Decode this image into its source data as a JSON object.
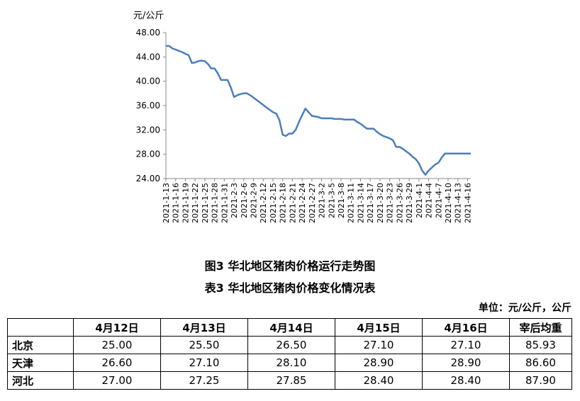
{
  "chart_data": {
    "type": "line",
    "y_unit_label": "元/公斤",
    "ylim": [
      24,
      48
    ],
    "y_ticks": [
      "48.00",
      "44.00",
      "40.00",
      "36.00",
      "32.00",
      "28.00",
      "24.00"
    ],
    "x_tick_labels": [
      "2021-1-13",
      "2021-1-16",
      "2021-1-19",
      "2021-1-22",
      "2021-1-25",
      "2021-1-28",
      "2021-1-31",
      "2021-2-3",
      "2021-2-6",
      "2021-2-9",
      "2021-2-12",
      "2021-2-15",
      "2021-2-18",
      "2021-2-21",
      "2021-2-24",
      "2021-2-27",
      "2021-3-2",
      "2021-3-5",
      "2021-3-8",
      "2021-3-11",
      "2021-3-14",
      "2021-3-17",
      "2021-3-20",
      "2021-3-23",
      "2021-3-26",
      "2021-3-29",
      "2021-4-1",
      "2021-4-4",
      "2021-4-7",
      "2021-4-10",
      "2021-4-13",
      "2021-4-16"
    ],
    "x_start": "2021-1-13",
    "x_end": "2021-4-17",
    "color": "#4a7ebb",
    "grid": false,
    "series": [
      {
        "x": [
          "2021-1-13",
          "2021-1-14",
          "2021-1-15",
          "2021-1-16",
          "2021-1-17",
          "2021-1-18",
          "2021-1-19",
          "2021-1-20",
          "2021-1-21",
          "2021-1-22",
          "2021-1-23",
          "2021-1-24",
          "2021-1-25",
          "2021-1-26",
          "2021-1-27",
          "2021-1-28",
          "2021-1-29",
          "2021-1-30",
          "2021-1-31",
          "2021-2-1",
          "2021-2-2",
          "2021-2-3",
          "2021-2-4",
          "2021-2-5",
          "2021-2-6",
          "2021-2-7",
          "2021-2-8",
          "2021-2-9",
          "2021-2-10",
          "2021-2-11",
          "2021-2-12",
          "2021-2-13",
          "2021-2-14",
          "2021-2-15",
          "2021-2-16",
          "2021-2-17",
          "2021-2-18",
          "2021-2-19",
          "2021-2-20",
          "2021-2-21",
          "2021-2-22",
          "2021-2-23",
          "2021-2-24",
          "2021-2-25",
          "2021-2-26",
          "2021-2-27",
          "2021-2-28",
          "2021-3-1",
          "2021-3-2",
          "2021-3-3",
          "2021-3-4",
          "2021-3-5",
          "2021-3-6",
          "2021-3-7",
          "2021-3-8",
          "2021-3-9",
          "2021-3-10",
          "2021-3-11",
          "2021-3-12",
          "2021-3-13",
          "2021-3-14",
          "2021-3-15",
          "2021-3-16",
          "2021-3-17",
          "2021-3-18",
          "2021-3-19",
          "2021-3-20",
          "2021-3-21",
          "2021-3-22",
          "2021-3-23",
          "2021-3-24",
          "2021-3-25",
          "2021-3-26",
          "2021-3-27",
          "2021-3-28",
          "2021-3-29",
          "2021-3-30",
          "2021-3-31",
          "2021-4-1",
          "2021-4-2",
          "2021-4-3",
          "2021-4-4",
          "2021-4-5",
          "2021-4-6",
          "2021-4-7",
          "2021-4-8",
          "2021-4-9",
          "2021-4-10",
          "2021-4-11",
          "2021-4-12",
          "2021-4-13",
          "2021-4-14",
          "2021-4-15",
          "2021-4-16",
          "2021-4-17"
        ],
        "values": [
          45.8,
          45.8,
          45.4,
          45.2,
          45.0,
          44.8,
          44.5,
          44.3,
          43.0,
          43.1,
          43.3,
          43.4,
          43.3,
          42.8,
          42.1,
          42.1,
          41.3,
          40.2,
          40.2,
          40.2,
          39.0,
          37.4,
          37.7,
          37.9,
          38.0,
          38.0,
          37.7,
          37.3,
          36.9,
          36.5,
          36.1,
          35.7,
          35.3,
          34.9,
          34.7,
          33.6,
          31.2,
          31.0,
          31.4,
          31.4,
          32.0,
          33.3,
          34.4,
          35.5,
          34.9,
          34.3,
          34.2,
          34.1,
          33.9,
          33.9,
          33.9,
          33.9,
          33.8,
          33.8,
          33.8,
          33.7,
          33.7,
          33.7,
          33.7,
          33.3,
          33.0,
          32.6,
          32.2,
          32.2,
          32.2,
          31.7,
          31.3,
          31.0,
          30.8,
          30.6,
          30.3,
          29.2,
          29.2,
          28.9,
          28.5,
          28.1,
          27.6,
          27.2,
          26.5,
          25.3,
          24.6,
          25.3,
          25.8,
          26.3,
          26.6,
          27.4,
          28.1,
          28.1,
          28.1,
          28.1,
          28.1,
          28.1,
          28.1,
          28.1,
          28.1
        ]
      }
    ]
  },
  "captions": {
    "figure": "图3 华北地区猪肉价格运行走势图",
    "table": "表3 华北地区猪肉价格变化情况表"
  },
  "unit_note": "单位：元/公斤，公斤",
  "table": {
    "headers": [
      "",
      "4月12日",
      "4月13日",
      "4月14日",
      "4月15日",
      "4月16日",
      "宰后均重"
    ],
    "rows": [
      {
        "name": "北京",
        "values": [
          "25.00",
          "25.50",
          "26.50",
          "27.10",
          "27.10",
          "85.93"
        ]
      },
      {
        "name": "天津",
        "values": [
          "26.60",
          "27.10",
          "28.10",
          "28.90",
          "28.90",
          "86.60"
        ]
      },
      {
        "name": "河北",
        "values": [
          "27.00",
          "27.25",
          "27.85",
          "28.40",
          "28.40",
          "87.90"
        ]
      }
    ]
  }
}
